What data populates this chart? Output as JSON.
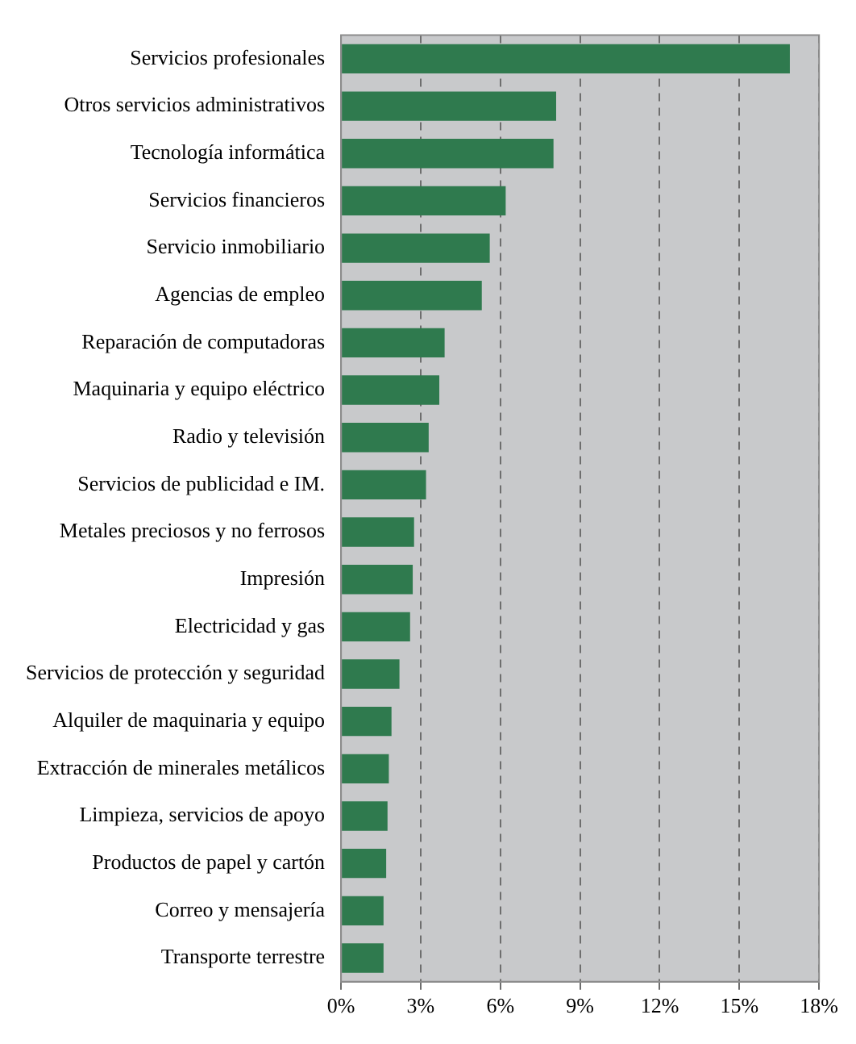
{
  "chart_data": {
    "type": "bar",
    "orientation": "horizontal",
    "categories": [
      "Servicios profesionales",
      "Otros servicios administrativos",
      "Tecnología informática",
      "Servicios financieros",
      "Servicio inmobiliario",
      "Agencias de empleo",
      "Reparación de computadoras",
      "Maquinaria y equipo eléctrico",
      "Radio y televisión",
      "Servicios de publicidad e IM.",
      "Metales preciosos y no ferrosos",
      "Impresión",
      "Electricidad y gas",
      "Servicios de protección y seguridad",
      "Alquiler de maquinaria y equipo",
      "Extracción de minerales metálicos",
      "Limpieza, servicios de apoyo",
      "Productos de papel y cartón",
      "Correo y mensajería",
      "Transporte terrestre"
    ],
    "values": [
      16.9,
      8.1,
      8.0,
      6.2,
      5.6,
      5.3,
      3.9,
      3.7,
      3.3,
      3.2,
      2.75,
      2.7,
      2.6,
      2.2,
      1.9,
      1.8,
      1.75,
      1.7,
      1.6,
      1.6
    ],
    "color": "#2f7a4e",
    "xlim": [
      0,
      18
    ],
    "xticks": [
      {
        "value": 0,
        "label": "0%"
      },
      {
        "value": 3,
        "label": "3%"
      },
      {
        "value": 6,
        "label": "6%"
      },
      {
        "value": 9,
        "label": "9%"
      },
      {
        "value": 12,
        "label": "12%"
      },
      {
        "value": 15,
        "label": "15%"
      },
      {
        "value": 18,
        "label": "18%"
      }
    ],
    "grid": "x",
    "legend": false
  }
}
